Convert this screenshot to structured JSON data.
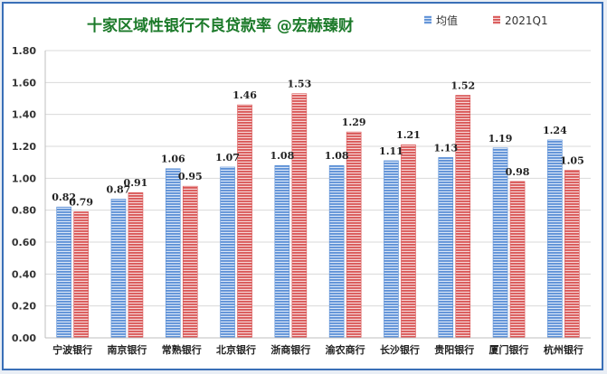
{
  "chart_data": {
    "type": "bar",
    "title": "十家区域性银行不良贷款率   @宏赫臻财",
    "categories": [
      "宁波银行",
      "南京银行",
      "常熟银行",
      "北京银行",
      "浙商银行",
      "渝农商行",
      "长沙银行",
      "贵阳银行",
      "厦门银行",
      "杭州银行"
    ],
    "series": [
      {
        "name": "均值",
        "values": [
          0.82,
          0.87,
          1.06,
          1.07,
          1.08,
          1.08,
          1.11,
          1.13,
          1.19,
          1.24
        ],
        "color": "#5b8fd6"
      },
      {
        "name": "2021Q1",
        "values": [
          0.79,
          0.91,
          0.95,
          1.46,
          1.53,
          1.29,
          1.21,
          1.52,
          0.98,
          1.05
        ],
        "color": "#d95555"
      }
    ],
    "yticks": [
      "0.00",
      "0.20",
      "0.40",
      "0.60",
      "0.80",
      "1.00",
      "1.20",
      "1.40",
      "1.60",
      "1.80"
    ],
    "ylim": [
      0,
      1.8
    ],
    "grid": true,
    "legend_position": "top-right"
  }
}
